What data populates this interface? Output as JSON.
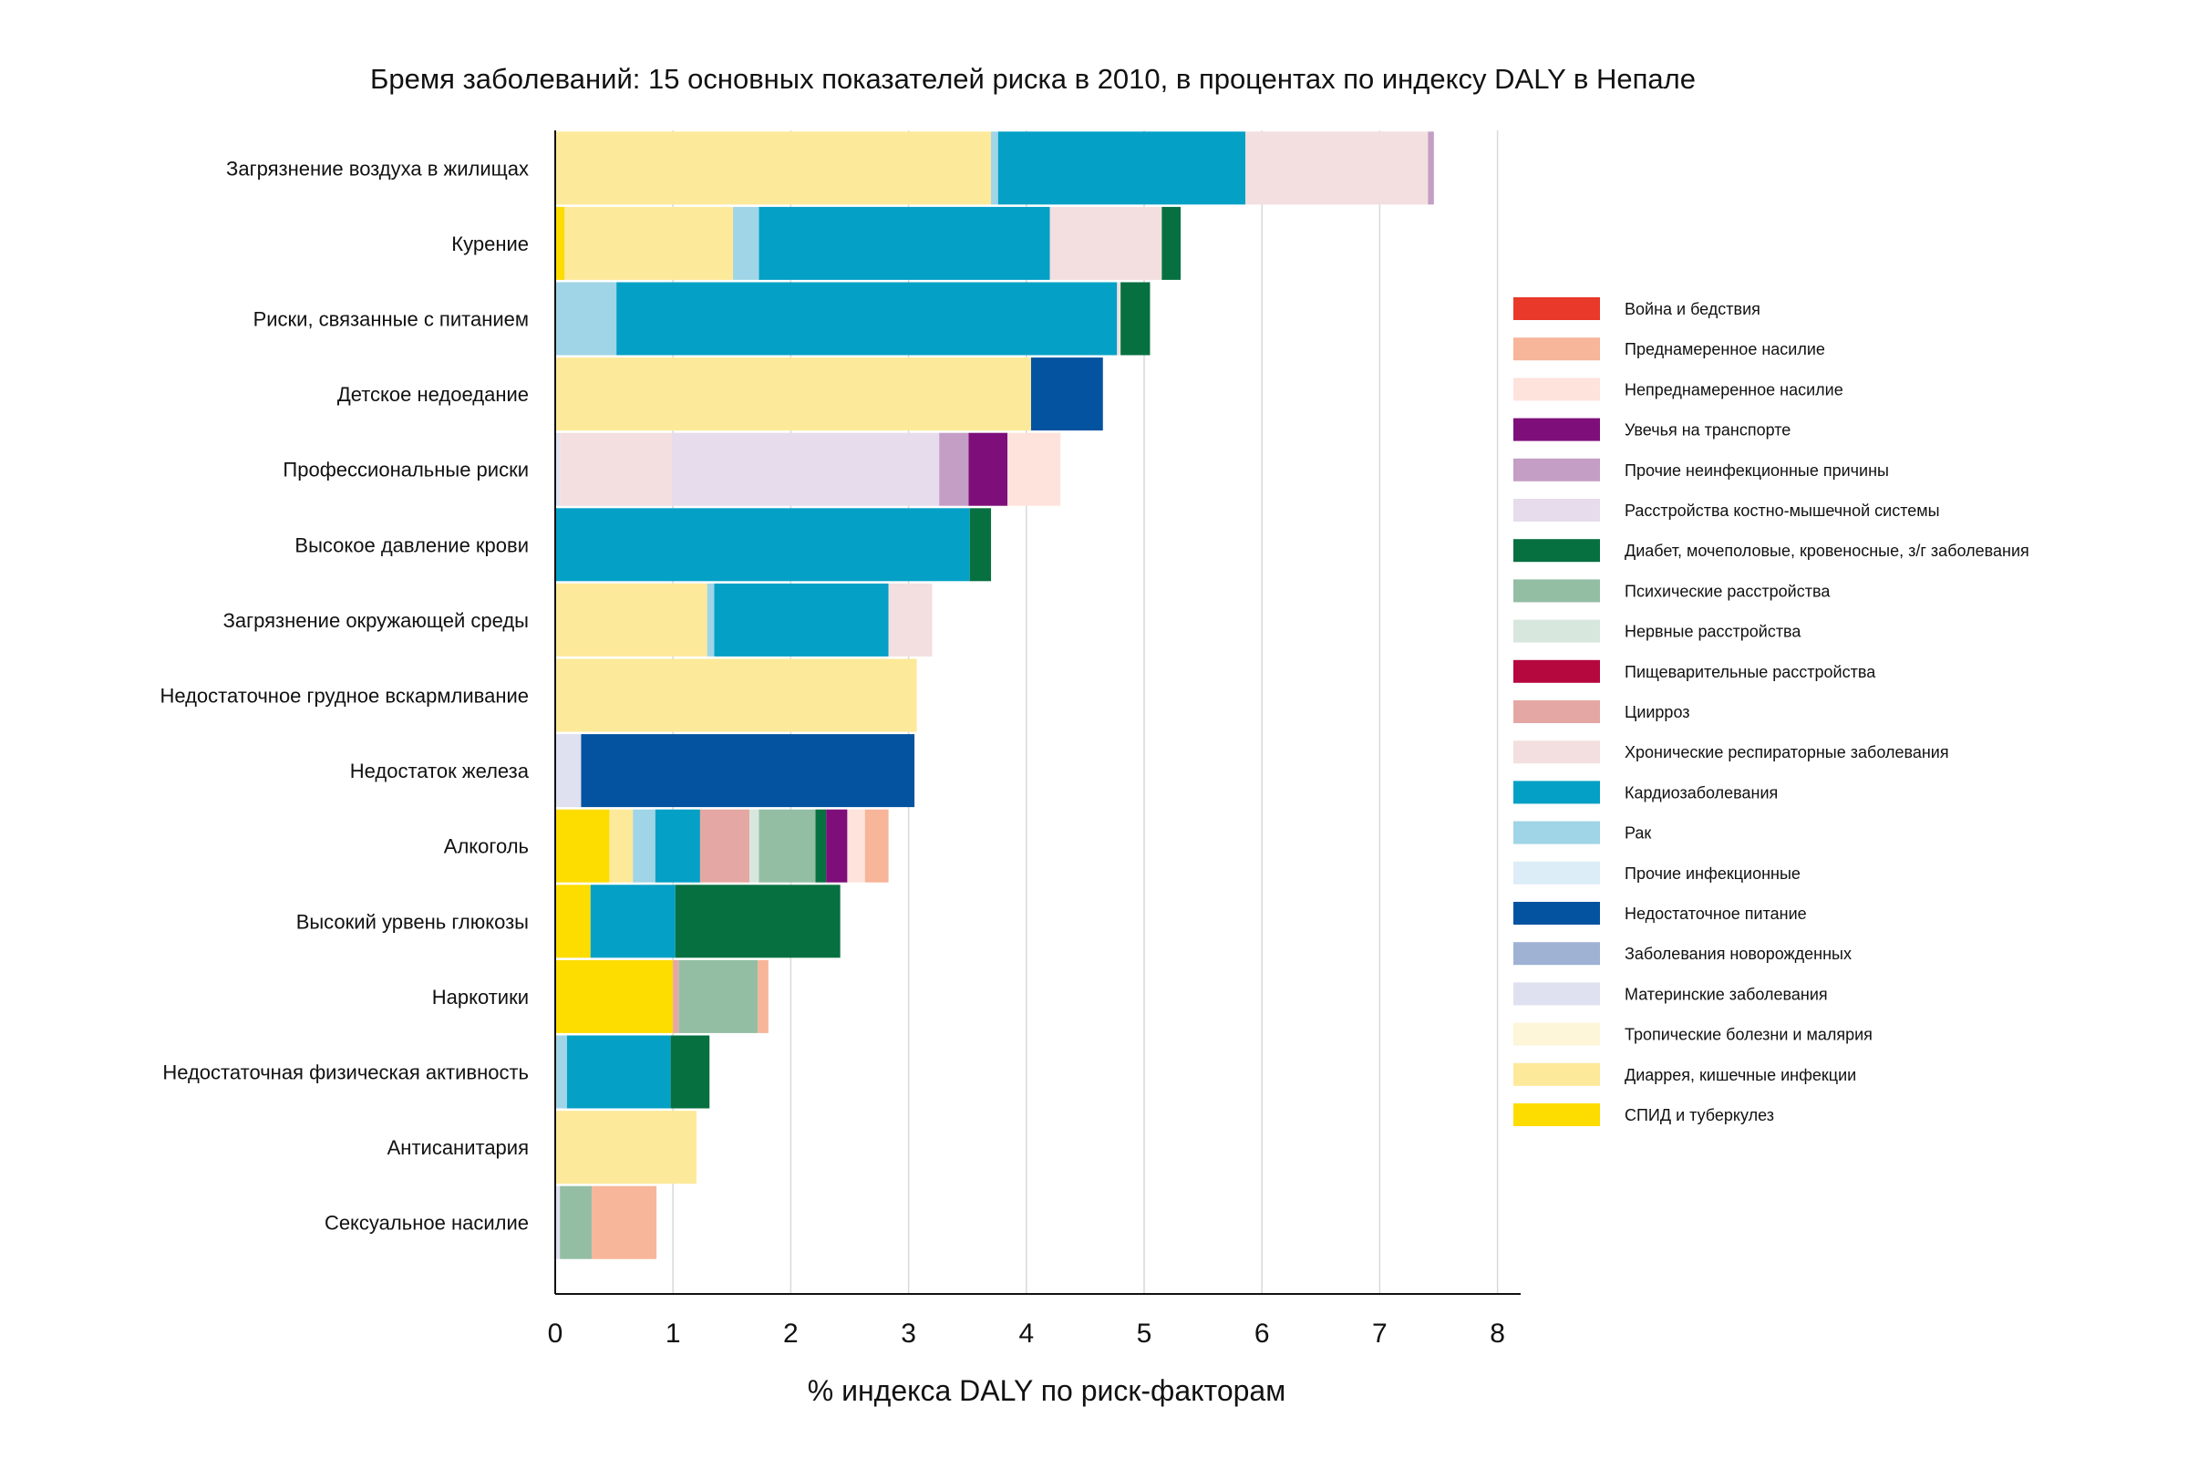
{
  "chart_data": {
    "type": "bar",
    "orientation": "horizontal",
    "stacked": true,
    "title": "Бремя заболеваний: 15 основных показателей риска в 2010, в процентах по индексу DALY в Непале",
    "xlabel": "% индекса DALY по риск-факторам",
    "ylabel": "",
    "xlim": [
      0,
      8.2
    ],
    "xticks": [
      "0",
      "1",
      "2",
      "3",
      "4",
      "5",
      "6",
      "7",
      "8"
    ],
    "grid": "vertical",
    "legend_position": "right",
    "categories": [
      "Загрязнение воздуха в жилищах",
      "Курение",
      "Риски, связанные с питанием",
      "Детское недоедание",
      "Профессиональные риски",
      "Высокое давление крови",
      "Загрязнение окружающей среды",
      "Недостаточное грудное вскармливание",
      "Недостаток железа",
      "Алкоголь",
      "Высокий урвень глюкозы",
      "Наркотики",
      "Недостаточная физическая активность",
      "Антисанитария",
      "Сексуальное насилие"
    ],
    "series": [
      {
        "name": "Война и бедствия",
        "color": "#e8392a",
        "values": [
          0,
          0,
          0,
          0,
          0,
          0,
          0,
          0,
          0,
          0,
          0,
          0,
          0,
          0,
          0
        ]
      },
      {
        "name": "Преднамеренное насилие",
        "color": "#f7b59a",
        "values": [
          0,
          0,
          0,
          0,
          0,
          0,
          0,
          0,
          0,
          0.2,
          0,
          0.09,
          0,
          0,
          0.55
        ]
      },
      {
        "name": "Непреднамеренное насилие",
        "color": "#fde3dc",
        "values": [
          0,
          0,
          0,
          0,
          0.45,
          0,
          0,
          0,
          0,
          0.15,
          0,
          0,
          0,
          0,
          0
        ]
      },
      {
        "name": "Увечья на транспорте",
        "color": "#7e0f7a",
        "values": [
          0,
          0,
          0,
          0,
          0.33,
          0,
          0,
          0,
          0,
          0.18,
          0,
          0,
          0,
          0,
          0
        ]
      },
      {
        "name": "Прочие неинфекционные причины",
        "color": "#c49ec4",
        "values": [
          0.05,
          0,
          0,
          0,
          0.25,
          0,
          0,
          0,
          0,
          0,
          0,
          0,
          0,
          0,
          0
        ]
      },
      {
        "name": "Расстройства костно-мышечной системы",
        "color": "#e6dceb",
        "values": [
          0,
          0,
          0,
          0,
          2.27,
          0,
          0,
          0,
          0,
          0,
          0,
          0,
          0,
          0,
          0
        ]
      },
      {
        "name": "Диабет, мочеполовые, кровеносные, з/г заболевания",
        "color": "#067040",
        "values": [
          0,
          0.16,
          0.25,
          0,
          0,
          0.18,
          0,
          0,
          0,
          0.09,
          1.4,
          0,
          0.33,
          0,
          0
        ]
      },
      {
        "name": "Психические расстройства",
        "color": "#93bea4",
        "values": [
          0,
          0,
          0,
          0,
          0,
          0,
          0,
          0,
          0,
          0.48,
          0,
          0.67,
          0,
          0,
          0.27
        ]
      },
      {
        "name": "Нервные расстройства",
        "color": "#d8e7de",
        "values": [
          0,
          0,
          0,
          0,
          0,
          0,
          0,
          0,
          0,
          0.08,
          0,
          0,
          0,
          0,
          0
        ]
      },
      {
        "name": "Пищеварительные расстройства",
        "color": "#b5083f",
        "values": [
          0,
          0,
          0,
          0,
          0,
          0,
          0,
          0,
          0,
          0,
          0,
          0,
          0,
          0,
          0
        ]
      },
      {
        "name": "Циирроз",
        "color": "#e4a7a3",
        "values": [
          0,
          0,
          0,
          0,
          0,
          0,
          0,
          0,
          0,
          0.42,
          0,
          0.05,
          0,
          0,
          0
        ]
      },
      {
        "name": "Хронические респираторные заболевания",
        "color": "#f3dfdf",
        "values": [
          1.55,
          0.95,
          0.03,
          0,
          0.95,
          0,
          0.37,
          0,
          0,
          0,
          0,
          0,
          0,
          0,
          0
        ]
      },
      {
        "name": "Кардиозаболевания",
        "color": "#04a0c6",
        "values": [
          2.1,
          2.47,
          4.25,
          0,
          0,
          3.52,
          1.48,
          0,
          0,
          0.38,
          0.72,
          0,
          0.88,
          0,
          0
        ]
      },
      {
        "name": "Рак",
        "color": "#9fd5e6",
        "values": [
          0.06,
          0.22,
          0.52,
          0,
          0,
          0,
          0.06,
          0,
          0,
          0.19,
          0,
          0,
          0.1,
          0,
          0
        ]
      },
      {
        "name": "Прочие инфекционные",
        "color": "#dcedf8",
        "values": [
          0,
          0,
          0,
          0,
          0,
          0,
          0,
          0,
          0,
          0,
          0,
          0,
          0,
          0,
          0
        ]
      },
      {
        "name": "Недостаточное питание",
        "color": "#0453a0",
        "values": [
          0,
          0,
          0,
          0.61,
          0,
          0,
          0,
          0,
          2.83,
          0,
          0,
          0,
          0,
          0,
          0
        ]
      },
      {
        "name": "Заболевания новорожденных",
        "color": "#9fb2d4",
        "values": [
          0,
          0,
          0,
          0,
          0,
          0,
          0,
          0,
          0,
          0,
          0,
          0,
          0,
          0,
          0
        ]
      },
      {
        "name": "Материнские заболевания",
        "color": "#dfe0f0",
        "values": [
          0,
          0,
          0,
          0,
          0.04,
          0,
          0,
          0,
          0.22,
          0,
          0,
          0,
          0,
          0,
          0.04
        ]
      },
      {
        "name": "Тропические болезни и малярия",
        "color": "#fdf6d8",
        "values": [
          0,
          0,
          0,
          0,
          0,
          0,
          0,
          0,
          0,
          0,
          0,
          0,
          0,
          0,
          0
        ]
      },
      {
        "name": "Диаррея, кишечные инфекции",
        "color": "#fde99a",
        "values": [
          3.7,
          1.43,
          0,
          4.04,
          0,
          0,
          1.29,
          3.07,
          0,
          0.2,
          0,
          0,
          0,
          1.2,
          0
        ]
      },
      {
        "name": "СПИД и туберкулез",
        "color": "#fddc00",
        "values": [
          0,
          0.08,
          0,
          0,
          0,
          0,
          0,
          0,
          0,
          0.46,
          0.3,
          1.0,
          0,
          0,
          0
        ]
      }
    ],
    "stack_order": [
      "СПИД и туберкулез",
      "Диаррея, кишечные инфекции",
      "Материнские заболевания",
      "Недостаточное питание",
      "Рак",
      "Кардиозаболевания",
      "Хронические респираторные заболевания",
      "Циирроз",
      "Нервные расстройства",
      "Психические расстройства",
      "Диабет, мочеполовые, кровеносные, з/г заболевания",
      "Расстройства костно-мышечной системы",
      "Прочие неинфекционные причины",
      "Увечья на транспорте",
      "Непреднамеренное насилие",
      "Преднамеренное насилие"
    ]
  }
}
